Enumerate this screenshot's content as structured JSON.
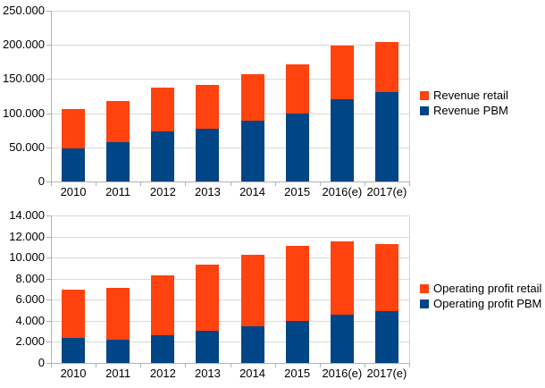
{
  "chart_data": [
    {
      "type": "bar",
      "stacked": true,
      "categories": [
        "2010",
        "2011",
        "2012",
        "2013",
        "2014",
        "2015",
        "2016(e)",
        "2017(e)"
      ],
      "series": [
        {
          "name": "Revenue retail",
          "color": "#ff420e",
          "values": [
            58000,
            60000,
            63500,
            65000,
            68000,
            72000,
            79000,
            74000
          ]
        },
        {
          "name": "Revenue PBM",
          "color": "#004586",
          "values": [
            48000,
            58000,
            74000,
            77000,
            88500,
            100000,
            120000,
            130500
          ]
        }
      ],
      "stack_order_bottom_to_top": [
        "Revenue PBM",
        "Revenue retail"
      ],
      "totals": [
        106000,
        118000,
        137500,
        142000,
        156500,
        172000,
        199000,
        204500
      ],
      "ylim": [
        0,
        250000
      ],
      "ytick_step": 50000,
      "ytick_labels": [
        "0",
        "50.000",
        "100.000",
        "150.000",
        "200.000",
        "250.000"
      ],
      "grid": true,
      "legend_position": "right"
    },
    {
      "type": "bar",
      "stacked": true,
      "categories": [
        "2010",
        "2011",
        "2012",
        "2013",
        "2014",
        "2015",
        "2016(e)",
        "2017(e)"
      ],
      "series": [
        {
          "name": "Operating profit retail",
          "color": "#ff420e",
          "values": [
            4600,
            4950,
            5700,
            6250,
            6850,
            7100,
            7000,
            6400
          ]
        },
        {
          "name": "Operating profit PBM",
          "color": "#004586",
          "values": [
            2350,
            2200,
            2650,
            3050,
            3450,
            4000,
            4550,
            4900
          ]
        }
      ],
      "stack_order_bottom_to_top": [
        "Operating profit PBM",
        "Operating profit retail"
      ],
      "totals": [
        6950,
        7150,
        8350,
        9300,
        10300,
        11100,
        11550,
        11300
      ],
      "ylim": [
        0,
        14000
      ],
      "ytick_step": 2000,
      "ytick_labels": [
        "0",
        "2.000",
        "4.000",
        "6.000",
        "8.000",
        "10.000",
        "12.000",
        "14.000"
      ],
      "grid": true,
      "legend_position": "right"
    }
  ]
}
